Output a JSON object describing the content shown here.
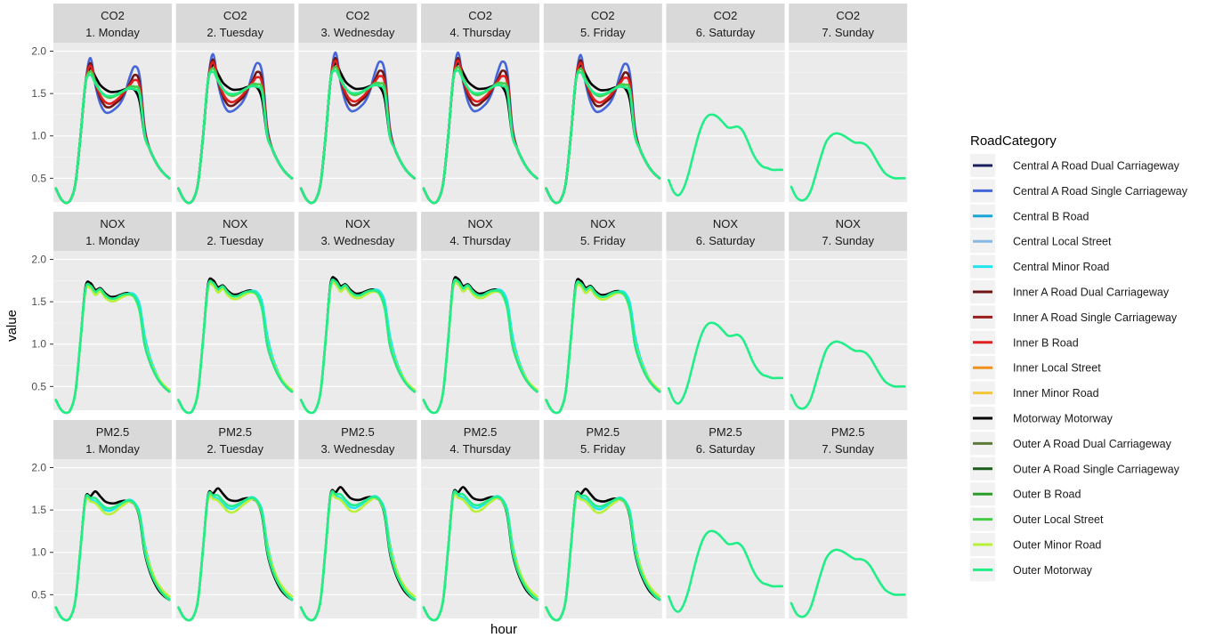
{
  "chart_data": {
    "type": "line",
    "xlabel": "hour",
    "ylabel": "value",
    "x": [
      0,
      1,
      2,
      3,
      4,
      5,
      6,
      7,
      8,
      9,
      10,
      11,
      12,
      13,
      14,
      15,
      16,
      17,
      18,
      19,
      20,
      21,
      22,
      23
    ],
    "ylim": [
      0.22,
      2.1
    ],
    "yticks": [
      0.5,
      1.0,
      1.5,
      2.0
    ],
    "ytick_labels": [
      "0.5",
      "1.0",
      "1.5",
      "2.0"
    ],
    "grid": true,
    "legend": {
      "title": "RoadCategory",
      "position": "right",
      "entries": [
        {
          "name": "Central A Road Dual Carriageway",
          "color": "#1a1f5e"
        },
        {
          "name": "Central A Road Single Carriageway",
          "color": "#4466d8"
        },
        {
          "name": "Central B Road",
          "color": "#1aa5d8"
        },
        {
          "name": "Central Local Street",
          "color": "#85b8e2"
        },
        {
          "name": "Central Minor Road",
          "color": "#22e6ee"
        },
        {
          "name": "Inner A Road Dual Carriageway",
          "color": "#6e1616"
        },
        {
          "name": "Inner A Road Single Carriageway",
          "color": "#9a1e1e"
        },
        {
          "name": "Inner B Road",
          "color": "#e01f1f"
        },
        {
          "name": "Inner Local Street",
          "color": "#f0901a"
        },
        {
          "name": "Inner Minor Road",
          "color": "#f2c636"
        },
        {
          "name": "Motorway Motorway",
          "color": "#000000"
        },
        {
          "name": "Outer A Road Dual Carriageway",
          "color": "#5e7a38"
        },
        {
          "name": "Outer A Road Single Carriageway",
          "color": "#1a5c1a"
        },
        {
          "name": "Outer B Road",
          "color": "#2a9c2a"
        },
        {
          "name": "Outer Local Street",
          "color": "#46cc46"
        },
        {
          "name": "Outer Minor Road",
          "color": "#b8f03a"
        },
        {
          "name": "Outer Motorway",
          "color": "#22ee88"
        }
      ]
    },
    "rows": [
      "CO2",
      "NOX",
      "PM2.5"
    ],
    "columns": [
      "1. Monday",
      "2. Tuesday",
      "3. Wednesday",
      "4. Thursday",
      "5. Friday",
      "6. Saturday",
      "7. Sunday"
    ],
    "weekday_curves": {
      "CO2": {
        "series": [
          {
            "name": "Motorway Motorway",
            "values": [
              0.38,
              0.26,
              0.21,
              0.25,
              0.45,
              1.0,
              1.62,
              1.8,
              1.7,
              1.6,
              1.55,
              1.52,
              1.52,
              1.53,
              1.55,
              1.56,
              1.54,
              1.4,
              1.0,
              0.85,
              0.72,
              0.62,
              0.55,
              0.5
            ]
          },
          {
            "name": "Central A Road Single Carriageway",
            "values": [
              0.38,
              0.26,
              0.21,
              0.25,
              0.45,
              1.0,
              1.62,
              1.92,
              1.6,
              1.38,
              1.28,
              1.28,
              1.32,
              1.38,
              1.5,
              1.7,
              1.82,
              1.7,
              1.1,
              0.85,
              0.72,
              0.62,
              0.55,
              0.5
            ]
          },
          {
            "name": "Inner A Road Dual Carriageway",
            "values": [
              0.38,
              0.26,
              0.21,
              0.25,
              0.45,
              1.0,
              1.62,
              1.86,
              1.62,
              1.45,
              1.35,
              1.34,
              1.38,
              1.43,
              1.52,
              1.62,
              1.72,
              1.62,
              1.06,
              0.85,
              0.72,
              0.62,
              0.55,
              0.5
            ]
          },
          {
            "name": "Inner B Road",
            "values": [
              0.38,
              0.26,
              0.21,
              0.25,
              0.45,
              1.0,
              1.62,
              1.83,
              1.63,
              1.48,
              1.4,
              1.38,
              1.41,
              1.46,
              1.53,
              1.6,
              1.66,
              1.58,
              1.05,
              0.85,
              0.72,
              0.62,
              0.55,
              0.5
            ]
          },
          {
            "name": "Outer Local Street",
            "values": [
              0.38,
              0.26,
              0.21,
              0.25,
              0.45,
              1.0,
              1.62,
              1.76,
              1.64,
              1.53,
              1.47,
              1.45,
              1.47,
              1.5,
              1.54,
              1.58,
              1.58,
              1.52,
              1.02,
              0.85,
              0.72,
              0.62,
              0.55,
              0.5
            ]
          },
          {
            "name": "Outer Motorway",
            "values": [
              0.38,
              0.26,
              0.21,
              0.25,
              0.45,
              1.0,
              1.62,
              1.72,
              1.62,
              1.53,
              1.48,
              1.47,
              1.48,
              1.51,
              1.54,
              1.56,
              1.55,
              1.48,
              1.0,
              0.85,
              0.72,
              0.62,
              0.55,
              0.5
            ]
          }
        ]
      },
      "NOX": {
        "series": [
          {
            "name": "Motorway Motorway",
            "values": [
              0.34,
              0.23,
              0.19,
              0.23,
              0.45,
              1.05,
              1.67,
              1.72,
              1.64,
              1.66,
              1.6,
              1.56,
              1.56,
              1.58,
              1.6,
              1.6,
              1.56,
              1.4,
              1.0,
              0.8,
              0.66,
              0.56,
              0.49,
              0.44
            ]
          },
          {
            "name": "Central Minor Road",
            "values": [
              0.34,
              0.23,
              0.19,
              0.23,
              0.45,
              1.05,
              1.64,
              1.68,
              1.61,
              1.64,
              1.58,
              1.54,
              1.54,
              1.56,
              1.58,
              1.6,
              1.58,
              1.46,
              1.1,
              0.86,
              0.7,
              0.58,
              0.5,
              0.45
            ]
          },
          {
            "name": "Outer Minor Road",
            "values": [
              0.34,
              0.23,
              0.19,
              0.23,
              0.45,
              1.05,
              1.62,
              1.66,
              1.58,
              1.62,
              1.55,
              1.51,
              1.51,
              1.54,
              1.57,
              1.58,
              1.54,
              1.38,
              1.02,
              0.82,
              0.68,
              0.58,
              0.51,
              0.46
            ]
          },
          {
            "name": "Outer Motorway",
            "values": [
              0.34,
              0.23,
              0.19,
              0.23,
              0.45,
              1.05,
              1.65,
              1.69,
              1.62,
              1.65,
              1.58,
              1.54,
              1.54,
              1.57,
              1.59,
              1.59,
              1.55,
              1.39,
              1.0,
              0.8,
              0.66,
              0.56,
              0.49,
              0.44
            ]
          }
        ]
      },
      "PM2.5": {
        "series": [
          {
            "name": "Motorway Motorway",
            "values": [
              0.35,
              0.24,
              0.2,
              0.24,
              0.45,
              1.05,
              1.64,
              1.66,
              1.72,
              1.66,
              1.6,
              1.58,
              1.58,
              1.6,
              1.61,
              1.6,
              1.56,
              1.4,
              1.0,
              0.78,
              0.64,
              0.54,
              0.48,
              0.44
            ]
          },
          {
            "name": "Central Minor Road",
            "values": [
              0.35,
              0.24,
              0.2,
              0.24,
              0.45,
              1.05,
              1.62,
              1.62,
              1.6,
              1.54,
              1.5,
              1.49,
              1.52,
              1.56,
              1.6,
              1.62,
              1.58,
              1.46,
              1.1,
              0.86,
              0.7,
              0.58,
              0.5,
              0.45
            ]
          },
          {
            "name": "Outer Minor Road",
            "values": [
              0.35,
              0.24,
              0.2,
              0.24,
              0.45,
              1.05,
              1.6,
              1.6,
              1.58,
              1.52,
              1.46,
              1.45,
              1.48,
              1.53,
              1.57,
              1.6,
              1.56,
              1.42,
              1.06,
              0.85,
              0.7,
              0.6,
              0.53,
              0.48
            ]
          },
          {
            "name": "Outer Motorway",
            "values": [
              0.35,
              0.24,
              0.2,
              0.24,
              0.45,
              1.05,
              1.63,
              1.64,
              1.64,
              1.58,
              1.53,
              1.52,
              1.54,
              1.57,
              1.6,
              1.61,
              1.57,
              1.42,
              1.02,
              0.8,
              0.66,
              0.56,
              0.49,
              0.44
            ]
          }
        ]
      }
    },
    "weekend_curves": {
      "6. Saturday": {
        "name": "Outer Motorway",
        "values": [
          0.48,
          0.34,
          0.3,
          0.38,
          0.55,
          0.78,
          1.0,
          1.16,
          1.24,
          1.25,
          1.22,
          1.16,
          1.1,
          1.1,
          1.11,
          1.06,
          0.94,
          0.8,
          0.7,
          0.64,
          0.62,
          0.6,
          0.6,
          0.6
        ]
      },
      "7. Sunday": {
        "name": "Outer Motorway",
        "values": [
          0.4,
          0.28,
          0.24,
          0.26,
          0.36,
          0.55,
          0.75,
          0.92,
          1.0,
          1.03,
          1.02,
          0.99,
          0.95,
          0.92,
          0.92,
          0.9,
          0.84,
          0.74,
          0.64,
          0.56,
          0.52,
          0.5,
          0.5,
          0.5
        ]
      }
    },
    "weekday_scale": {
      "1. Monday": 1.0,
      "2. Tuesday": 1.05,
      "3. Wednesday": 1.07,
      "4. Thursday": 1.07,
      "5. Friday": 1.04
    }
  }
}
